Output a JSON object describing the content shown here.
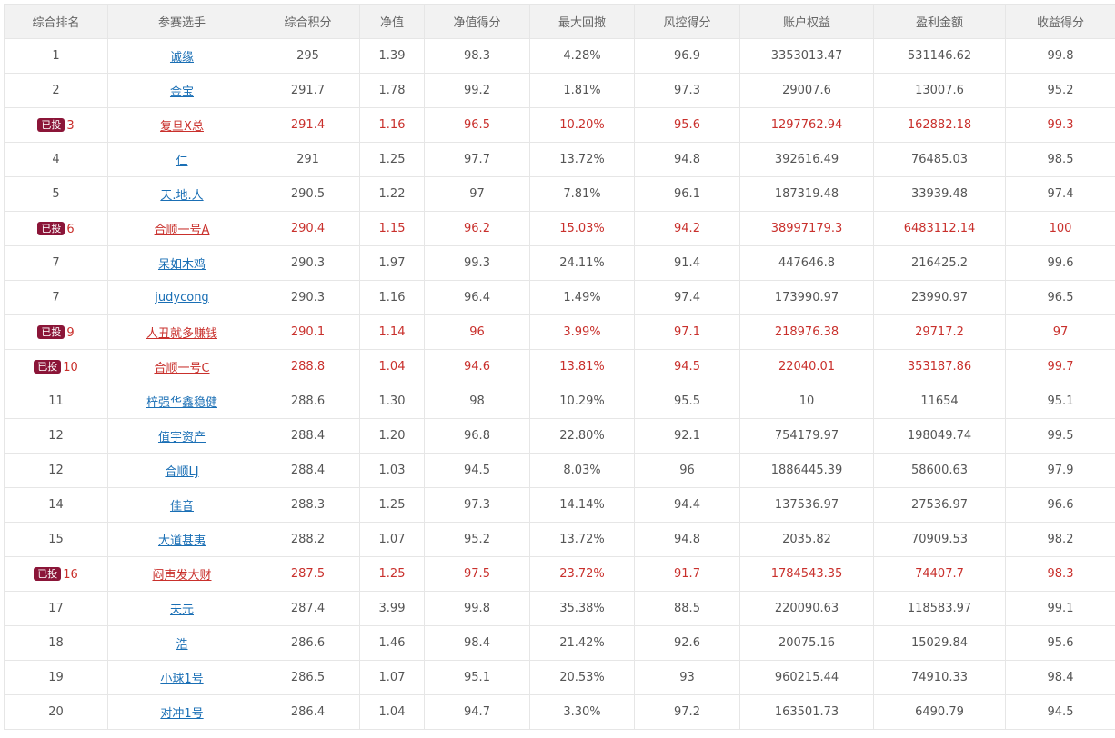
{
  "headers": [
    "综合排名",
    "参赛选手",
    "综合积分",
    "净值",
    "净值得分",
    "最大回撤",
    "风控得分",
    "账户权益",
    "盈利金额",
    "收益得分"
  ],
  "badge_label": "已投",
  "rows": [
    {
      "rank": "1",
      "player": "诚缘",
      "score": "295",
      "nav": "1.39",
      "nav_score": "98.3",
      "max_drawdown": "4.28%",
      "risk_score": "96.9",
      "equity": "3353013.47",
      "profit": "531146.62",
      "return_score": "99.8",
      "invested": false
    },
    {
      "rank": "2",
      "player": "金宝",
      "score": "291.7",
      "nav": "1.78",
      "nav_score": "99.2",
      "max_drawdown": "1.81%",
      "risk_score": "97.3",
      "equity": "29007.6",
      "profit": "13007.6",
      "return_score": "95.2",
      "invested": false
    },
    {
      "rank": "3",
      "player": "复旦X总",
      "score": "291.4",
      "nav": "1.16",
      "nav_score": "96.5",
      "max_drawdown": "10.20%",
      "risk_score": "95.6",
      "equity": "1297762.94",
      "profit": "162882.18",
      "return_score": "99.3",
      "invested": true
    },
    {
      "rank": "4",
      "player": "仁",
      "score": "291",
      "nav": "1.25",
      "nav_score": "97.7",
      "max_drawdown": "13.72%",
      "risk_score": "94.8",
      "equity": "392616.49",
      "profit": "76485.03",
      "return_score": "98.5",
      "invested": false
    },
    {
      "rank": "5",
      "player": "天.地.人",
      "score": "290.5",
      "nav": "1.22",
      "nav_score": "97",
      "max_drawdown": "7.81%",
      "risk_score": "96.1",
      "equity": "187319.48",
      "profit": "33939.48",
      "return_score": "97.4",
      "invested": false
    },
    {
      "rank": "6",
      "player": "合顺一号A",
      "score": "290.4",
      "nav": "1.15",
      "nav_score": "96.2",
      "max_drawdown": "15.03%",
      "risk_score": "94.2",
      "equity": "38997179.3",
      "profit": "6483112.14",
      "return_score": "100",
      "invested": true
    },
    {
      "rank": "7",
      "player": "呆如木鸡",
      "score": "290.3",
      "nav": "1.97",
      "nav_score": "99.3",
      "max_drawdown": "24.11%",
      "risk_score": "91.4",
      "equity": "447646.8",
      "profit": "216425.2",
      "return_score": "99.6",
      "invested": false
    },
    {
      "rank": "7",
      "player": "judycong",
      "score": "290.3",
      "nav": "1.16",
      "nav_score": "96.4",
      "max_drawdown": "1.49%",
      "risk_score": "97.4",
      "equity": "173990.97",
      "profit": "23990.97",
      "return_score": "96.5",
      "invested": false
    },
    {
      "rank": "9",
      "player": "人丑就多赚钱",
      "score": "290.1",
      "nav": "1.14",
      "nav_score": "96",
      "max_drawdown": "3.99%",
      "risk_score": "97.1",
      "equity": "218976.38",
      "profit": "29717.2",
      "return_score": "97",
      "invested": true
    },
    {
      "rank": "10",
      "player": "合顺一号C",
      "score": "288.8",
      "nav": "1.04",
      "nav_score": "94.6",
      "max_drawdown": "13.81%",
      "risk_score": "94.5",
      "equity": "22040.01",
      "profit": "353187.86",
      "return_score": "99.7",
      "invested": true
    },
    {
      "rank": "11",
      "player": "梓强华鑫稳健",
      "score": "288.6",
      "nav": "1.30",
      "nav_score": "98",
      "max_drawdown": "10.29%",
      "risk_score": "95.5",
      "equity": "10",
      "profit": "11654",
      "return_score": "95.1",
      "invested": false
    },
    {
      "rank": "12",
      "player": "值宇资产",
      "score": "288.4",
      "nav": "1.20",
      "nav_score": "96.8",
      "max_drawdown": "22.80%",
      "risk_score": "92.1",
      "equity": "754179.97",
      "profit": "198049.74",
      "return_score": "99.5",
      "invested": false
    },
    {
      "rank": "12",
      "player": "合顺LJ",
      "score": "288.4",
      "nav": "1.03",
      "nav_score": "94.5",
      "max_drawdown": "8.03%",
      "risk_score": "96",
      "equity": "1886445.39",
      "profit": "58600.63",
      "return_score": "97.9",
      "invested": false
    },
    {
      "rank": "14",
      "player": "佳音",
      "score": "288.3",
      "nav": "1.25",
      "nav_score": "97.3",
      "max_drawdown": "14.14%",
      "risk_score": "94.4",
      "equity": "137536.97",
      "profit": "27536.97",
      "return_score": "96.6",
      "invested": false
    },
    {
      "rank": "15",
      "player": "大道甚夷",
      "score": "288.2",
      "nav": "1.07",
      "nav_score": "95.2",
      "max_drawdown": "13.72%",
      "risk_score": "94.8",
      "equity": "2035.82",
      "profit": "70909.53",
      "return_score": "98.2",
      "invested": false
    },
    {
      "rank": "16",
      "player": "闷声发大财",
      "score": "287.5",
      "nav": "1.25",
      "nav_score": "97.5",
      "max_drawdown": "23.72%",
      "risk_score": "91.7",
      "equity": "1784543.35",
      "profit": "74407.7",
      "return_score": "98.3",
      "invested": true
    },
    {
      "rank": "17",
      "player": "天元",
      "score": "287.4",
      "nav": "3.99",
      "nav_score": "99.8",
      "max_drawdown": "35.38%",
      "risk_score": "88.5",
      "equity": "220090.63",
      "profit": "118583.97",
      "return_score": "99.1",
      "invested": false
    },
    {
      "rank": "18",
      "player": "浩",
      "score": "286.6",
      "nav": "1.46",
      "nav_score": "98.4",
      "max_drawdown": "21.42%",
      "risk_score": "92.6",
      "equity": "20075.16",
      "profit": "15029.84",
      "return_score": "95.6",
      "invested": false
    },
    {
      "rank": "19",
      "player": "小球1号",
      "score": "286.5",
      "nav": "1.07",
      "nav_score": "95.1",
      "max_drawdown": "20.53%",
      "risk_score": "93",
      "equity": "960215.44",
      "profit": "74910.33",
      "return_score": "98.4",
      "invested": false
    },
    {
      "rank": "20",
      "player": "对冲1号",
      "score": "286.4",
      "nav": "1.04",
      "nav_score": "94.7",
      "max_drawdown": "3.30%",
      "risk_score": "97.2",
      "equity": "163501.73",
      "profit": "6490.79",
      "return_score": "94.5",
      "invested": false
    }
  ],
  "colors": {
    "highlight_text": "#c9302c",
    "badge_bg": "#8b1538",
    "link": "#1a6fb5",
    "header_bg": "#f2f2f2"
  }
}
